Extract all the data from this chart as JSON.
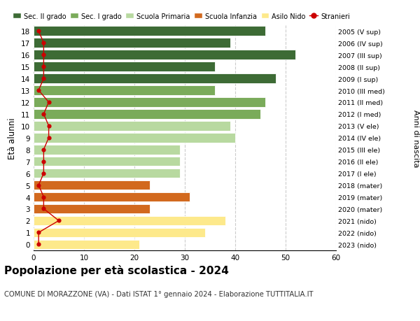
{
  "ages": [
    18,
    17,
    16,
    15,
    14,
    13,
    12,
    11,
    10,
    9,
    8,
    7,
    6,
    5,
    4,
    3,
    2,
    1,
    0
  ],
  "right_labels": [
    "2005 (V sup)",
    "2006 (IV sup)",
    "2007 (III sup)",
    "2008 (II sup)",
    "2009 (I sup)",
    "2010 (III med)",
    "2011 (II med)",
    "2012 (I med)",
    "2013 (V ele)",
    "2014 (IV ele)",
    "2015 (III ele)",
    "2016 (II ele)",
    "2017 (I ele)",
    "2018 (mater)",
    "2019 (mater)",
    "2020 (mater)",
    "2021 (nido)",
    "2022 (nido)",
    "2023 (nido)"
  ],
  "bar_values": [
    46,
    39,
    52,
    36,
    48,
    36,
    46,
    45,
    39,
    40,
    29,
    29,
    29,
    23,
    31,
    23,
    38,
    34,
    21
  ],
  "bar_colors": [
    "#3d6b35",
    "#3d6b35",
    "#3d6b35",
    "#3d6b35",
    "#3d6b35",
    "#7aab5a",
    "#7aab5a",
    "#7aab5a",
    "#b8d9a0",
    "#b8d9a0",
    "#b8d9a0",
    "#b8d9a0",
    "#b8d9a0",
    "#d2691e",
    "#d2691e",
    "#d2691e",
    "#fde98b",
    "#fde98b",
    "#fde98b"
  ],
  "stranieri_values": [
    1,
    2,
    2,
    2,
    2,
    1,
    3,
    2,
    3,
    3,
    2,
    2,
    2,
    1,
    2,
    2,
    5,
    1,
    1
  ],
  "legend_labels": [
    "Sec. II grado",
    "Sec. I grado",
    "Scuola Primaria",
    "Scuola Infanzia",
    "Asilo Nido",
    "Stranieri"
  ],
  "legend_colors": [
    "#3d6b35",
    "#7aab5a",
    "#b8d9a0",
    "#d2691e",
    "#fde98b",
    "#cc0000"
  ],
  "title": "Popolazione per età scolastica - 2024",
  "subtitle": "COMUNE DI MORAZZONE (VA) - Dati ISTAT 1° gennaio 2024 - Elaborazione TUTTITALIA.IT",
  "ylabel_left": "Anni di nascita",
  "ylabel": "Età alunni",
  "xlim": [
    0,
    60
  ],
  "xticks": [
    0,
    10,
    20,
    30,
    40,
    50,
    60
  ],
  "bg_color": "#ffffff",
  "grid_color": "#cccccc"
}
